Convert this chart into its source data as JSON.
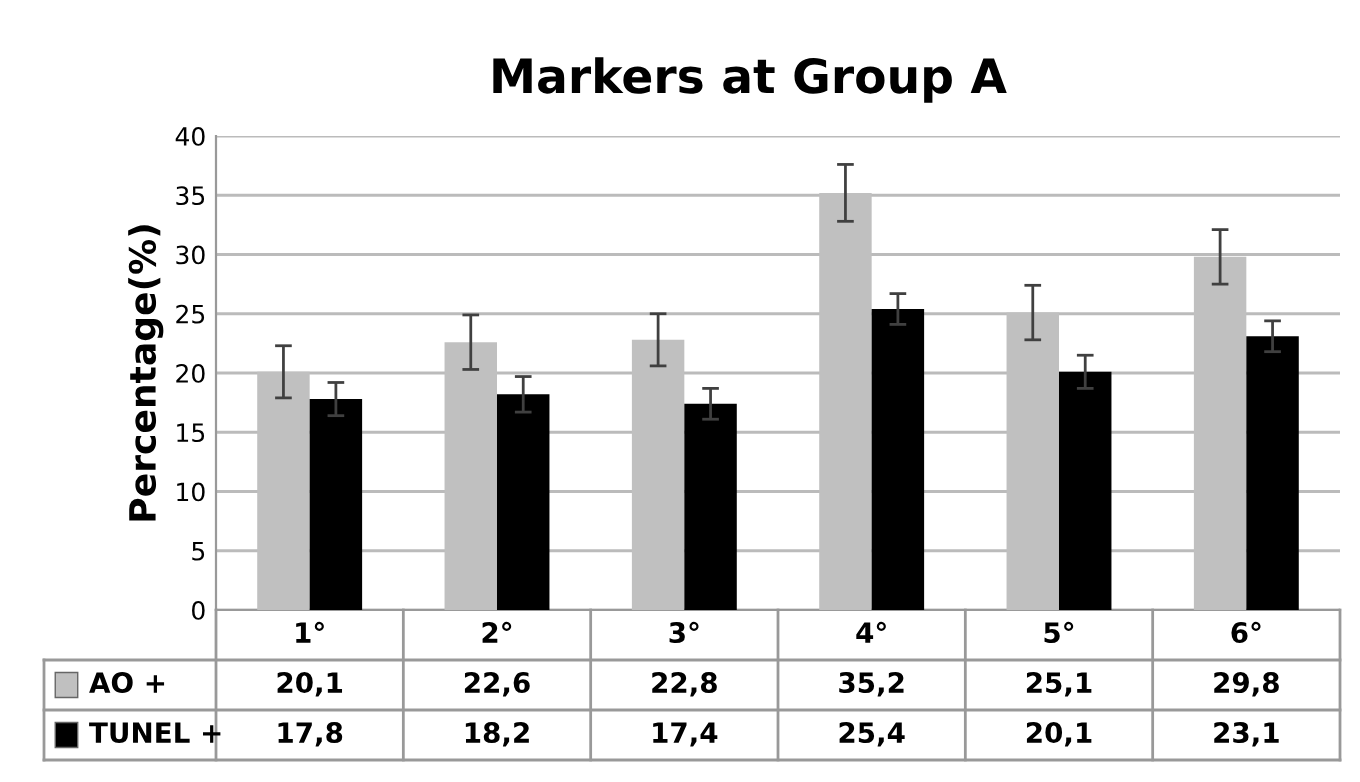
{
  "chart_data": {
    "type": "bar",
    "title": "Markers at Group A",
    "ylabel": "Percentage(%)",
    "categories": [
      "1°",
      "2°",
      "3°",
      "4°",
      "5°",
      "6°"
    ],
    "series": [
      {
        "name": "AO +",
        "color": "#c0c0c0",
        "values": [
          20.1,
          22.6,
          22.8,
          35.2,
          25.1,
          29.8
        ],
        "value_labels": [
          "20,1",
          "22,6",
          "22,8",
          "35,2",
          "25,1",
          "29,8"
        ],
        "errors": [
          2.2,
          2.3,
          2.2,
          2.4,
          2.3,
          2.3
        ]
      },
      {
        "name": "TUNEL +",
        "color": "#000000",
        "values": [
          17.8,
          18.2,
          17.4,
          25.4,
          20.1,
          23.1
        ],
        "value_labels": [
          "17,8",
          "18,2",
          "17,4",
          "25,4",
          "20,1",
          "23,1"
        ],
        "errors": [
          1.4,
          1.5,
          1.3,
          1.3,
          1.4,
          1.3
        ]
      }
    ],
    "ylim": [
      0,
      40
    ],
    "yticks": [
      0,
      5,
      10,
      15,
      20,
      25,
      30,
      35,
      40
    ],
    "grid": "y",
    "legend": "bottom"
  }
}
